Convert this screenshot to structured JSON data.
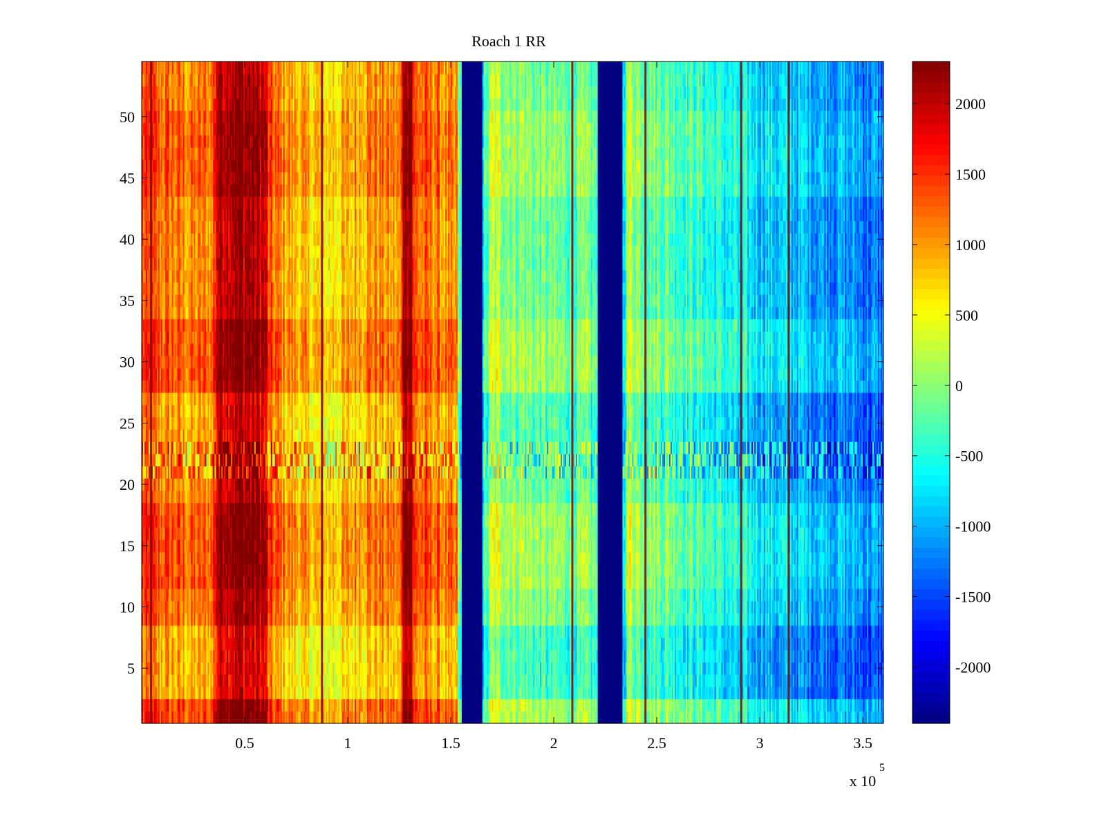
{
  "chart_data": {
    "type": "heatmap",
    "title": "Roach 1 RR",
    "xlabel": "",
    "ylabel": "",
    "x_exponent_label": "x 10",
    "x_exponent": "5",
    "xlim": [
      0,
      3.6
    ],
    "ylim": [
      0.5,
      54.5
    ],
    "rows": 54,
    "x_ticks": [
      {
        "value": 0.5,
        "label": "0.5"
      },
      {
        "value": 1,
        "label": "1"
      },
      {
        "value": 1.5,
        "label": "1.5"
      },
      {
        "value": 2,
        "label": "2"
      },
      {
        "value": 2.5,
        "label": "2.5"
      },
      {
        "value": 3,
        "label": "3"
      },
      {
        "value": 3.5,
        "label": "3.5"
      }
    ],
    "y_ticks": [
      {
        "value": 5,
        "label": "5"
      },
      {
        "value": 10,
        "label": "10"
      },
      {
        "value": 15,
        "label": "15"
      },
      {
        "value": 20,
        "label": "20"
      },
      {
        "value": 25,
        "label": "25"
      },
      {
        "value": 30,
        "label": "30"
      },
      {
        "value": 35,
        "label": "35"
      },
      {
        "value": 40,
        "label": "40"
      },
      {
        "value": 45,
        "label": "45"
      },
      {
        "value": 50,
        "label": "50"
      }
    ],
    "colorbar": {
      "colormap": "jet",
      "clim": [
        -2400,
        2300
      ],
      "ticks": [
        {
          "value": 2000,
          "label": "2000"
        },
        {
          "value": 1500,
          "label": "1500"
        },
        {
          "value": 1000,
          "label": "1000"
        },
        {
          "value": 500,
          "label": "500"
        },
        {
          "value": 0,
          "label": "0"
        },
        {
          "value": -500,
          "label": "-500"
        },
        {
          "value": -1000,
          "label": "-1000"
        },
        {
          "value": -1500,
          "label": "-1500"
        },
        {
          "value": -2000,
          "label": "-2000"
        }
      ]
    },
    "column_profile": [
      {
        "x": 0.0,
        "value": 1300
      },
      {
        "x": 0.03,
        "value": 1250
      },
      {
        "x": 0.08,
        "value": 1150
      },
      {
        "x": 0.15,
        "value": 1100
      },
      {
        "x": 0.25,
        "value": 1000
      },
      {
        "x": 0.34,
        "value": 1050
      },
      {
        "x": 0.37,
        "value": 2050
      },
      {
        "x": 0.45,
        "value": 2150
      },
      {
        "x": 0.55,
        "value": 2050
      },
      {
        "x": 0.6,
        "value": 1900
      },
      {
        "x": 0.62,
        "value": 1200
      },
      {
        "x": 0.7,
        "value": 950
      },
      {
        "x": 0.8,
        "value": 700
      },
      {
        "x": 0.9,
        "value": 600
      },
      {
        "x": 1.0,
        "value": 750
      },
      {
        "x": 1.1,
        "value": 1000
      },
      {
        "x": 1.2,
        "value": 950
      },
      {
        "x": 1.26,
        "value": 900
      },
      {
        "x": 1.27,
        "value": 2300
      },
      {
        "x": 1.31,
        "value": 2300
      },
      {
        "x": 1.32,
        "value": 1200
      },
      {
        "x": 1.42,
        "value": 1100
      },
      {
        "x": 1.53,
        "value": 800
      },
      {
        "x": 1.54,
        "value": -400
      },
      {
        "x": 1.555,
        "value": -700
      },
      {
        "x": 1.556,
        "value": -2400
      },
      {
        "x": 1.655,
        "value": -2400
      },
      {
        "x": 1.656,
        "value": -800
      },
      {
        "x": 1.68,
        "value": -300
      },
      {
        "x": 1.7,
        "value": 150
      },
      {
        "x": 1.8,
        "value": 0
      },
      {
        "x": 1.95,
        "value": -200
      },
      {
        "x": 2.1,
        "value": -250
      },
      {
        "x": 2.2,
        "value": -300
      },
      {
        "x": 2.215,
        "value": -600
      },
      {
        "x": 2.216,
        "value": -2400
      },
      {
        "x": 2.335,
        "value": -2400
      },
      {
        "x": 2.336,
        "value": -900
      },
      {
        "x": 2.36,
        "value": 200
      },
      {
        "x": 2.45,
        "value": -150
      },
      {
        "x": 2.6,
        "value": -300
      },
      {
        "x": 2.75,
        "value": -550
      },
      {
        "x": 2.9,
        "value": -750
      },
      {
        "x": 3.05,
        "value": -900
      },
      {
        "x": 3.2,
        "value": -1000
      },
      {
        "x": 3.35,
        "value": -1100
      },
      {
        "x": 3.5,
        "value": -1250
      },
      {
        "x": 3.6,
        "value": -1350
      }
    ],
    "accent_lines": [
      {
        "x": 0.045,
        "value": 2350
      },
      {
        "x": 0.875,
        "value": 2350
      },
      {
        "x": 2.09,
        "value": 2350
      },
      {
        "x": 2.445,
        "value": 2350
      },
      {
        "x": 2.91,
        "value": 2350
      },
      {
        "x": 3.14,
        "value": 2350
      }
    ],
    "row_modulation": [
      {
        "row_from": 1,
        "row_to": 2,
        "offset": 300
      },
      {
        "row_from": 3,
        "row_to": 8,
        "offset": -200
      },
      {
        "row_from": 9,
        "row_to": 11,
        "offset": 100
      },
      {
        "row_from": 12,
        "row_to": 18,
        "offset": 250
      },
      {
        "row_from": 19,
        "row_to": 20,
        "offset": 0
      },
      {
        "row_from": 21,
        "row_to": 23,
        "offset": -50,
        "mixed": true
      },
      {
        "row_from": 24,
        "row_to": 27,
        "offset": -150
      },
      {
        "row_from": 28,
        "row_to": 33,
        "offset": 250
      },
      {
        "row_from": 34,
        "row_to": 43,
        "offset": 0
      },
      {
        "row_from": 44,
        "row_to": 50,
        "offset": 200
      },
      {
        "row_from": 51,
        "row_to": 54,
        "offset": 50
      }
    ]
  }
}
